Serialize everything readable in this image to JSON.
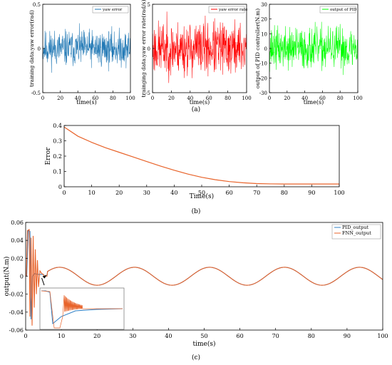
{
  "colors": {
    "yaw_error": "#1f77b4",
    "yaw_error_rate": "#ff0000",
    "pid_output_a": "#00ff00",
    "error_curve": "#e8632a",
    "pid_output_c": "#2f7fc4",
    "fnn_output": "#e8632a",
    "axis": "#000000"
  },
  "chart_data": [
    {
      "id": "a1",
      "type": "line",
      "panel_caption": "",
      "xlabel": "time(s)",
      "ylabel": "training data:yaw error(rad)",
      "xlim": [
        0,
        100
      ],
      "ylim": [
        -0.5,
        0.5
      ],
      "xticks": [
        0,
        20,
        40,
        60,
        80,
        100
      ],
      "yticks": [
        -0.5,
        0,
        0.5
      ],
      "grid": false,
      "legend_position": "top-right",
      "series": [
        {
          "name": "yaw error",
          "noise": {
            "n": 400,
            "amplitude": 0.1,
            "clip": 0.31,
            "seed": 11
          }
        }
      ]
    },
    {
      "id": "a2",
      "type": "line",
      "panel_caption": "",
      "xlabel": "time(s)",
      "ylabel": "trainging data:yaw error rate(rad/s)",
      "xlim": [
        0,
        100
      ],
      "ylim": [
        -5,
        5
      ],
      "xticks": [
        0,
        20,
        40,
        60,
        80,
        100
      ],
      "yticks": [
        -5,
        0,
        5
      ],
      "grid": false,
      "legend_position": "top-right",
      "series": [
        {
          "name": "yaw error rate",
          "noise": {
            "n": 400,
            "amplitude": 1.5,
            "clip": 4.4,
            "seed": 23
          }
        }
      ]
    },
    {
      "id": "a3",
      "type": "line",
      "panel_caption": "(a)",
      "xlabel": "time(s)",
      "ylabel": "output of PID controller(N.m)",
      "xlim": [
        0,
        100
      ],
      "ylim": [
        -30,
        30
      ],
      "xticks": [
        0,
        20,
        40,
        60,
        80,
        100
      ],
      "yticks": [
        -30,
        -20,
        -10,
        0,
        10,
        20,
        30
      ],
      "grid": false,
      "legend_position": "top-right",
      "series": [
        {
          "name": "output of PID",
          "noise": {
            "n": 400,
            "amplitude": 7,
            "clip": 22,
            "seed": 37
          }
        }
      ]
    },
    {
      "id": "b",
      "type": "line",
      "panel_caption": "(b)",
      "xlabel": "Time(s)",
      "ylabel": "Error",
      "xlim": [
        0,
        100
      ],
      "ylim": [
        0,
        0.4
      ],
      "xticks": [
        0,
        10,
        20,
        30,
        40,
        50,
        60,
        70,
        80,
        90,
        100
      ],
      "yticks": [
        0,
        0.1,
        0.2,
        0.3,
        0.4
      ],
      "grid": false,
      "series": [
        {
          "name": "",
          "x": [
            0,
            5,
            10,
            15,
            20,
            25,
            30,
            35,
            40,
            45,
            50,
            55,
            60,
            65,
            70,
            75,
            80,
            85,
            90,
            95,
            100
          ],
          "y": [
            0.39,
            0.33,
            0.29,
            0.255,
            0.225,
            0.195,
            0.165,
            0.135,
            0.108,
            0.083,
            0.062,
            0.046,
            0.034,
            0.026,
            0.021,
            0.019,
            0.018,
            0.018,
            0.018,
            0.018,
            0.018
          ]
        }
      ]
    },
    {
      "id": "c",
      "type": "line",
      "panel_caption": "(c)",
      "xlabel": "time(s)",
      "ylabel": "output(N.m)",
      "xlim": [
        0,
        100
      ],
      "ylim": [
        -0.06,
        0.06
      ],
      "xticks": [
        0,
        10,
        20,
        30,
        40,
        50,
        60,
        70,
        80,
        90,
        100
      ],
      "yticks": [
        -0.06,
        -0.04,
        -0.02,
        0,
        0.02,
        0.04,
        0.06
      ],
      "grid": false,
      "legend_position": "top-right",
      "series": [
        {
          "name": "PID_output",
          "sine": {
            "amplitude": 0.01,
            "period": 21,
            "phase_t0": 9.5,
            "settle": 6
          }
        },
        {
          "name": "FNN_output",
          "sine": {
            "amplitude": 0.01,
            "period": 21,
            "phase_t0": 9.5,
            "settle": 6
          },
          "transient": true
        }
      ]
    }
  ]
}
